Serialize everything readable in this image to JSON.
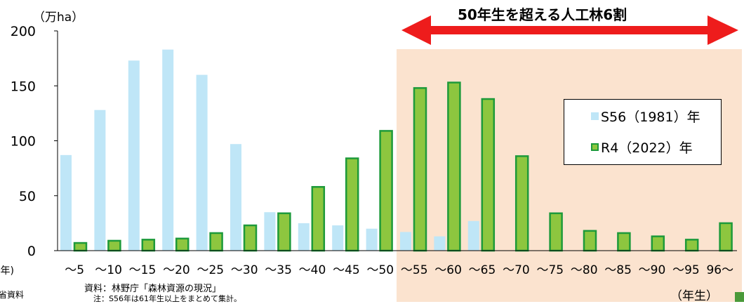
{
  "chart_data": {
    "type": "bar",
    "title": "50年生を超える人工林6割",
    "ylabel": "（万ha）",
    "xlabel": "（年生）",
    "ylim": [
      0,
      200
    ],
    "yticks": [
      0,
      50,
      100,
      150,
      200
    ],
    "grid": false,
    "legend_position": "right",
    "categories": [
      "～5",
      "～10",
      "～15",
      "～20",
      "～25",
      "～30",
      "～35",
      "～40",
      "～45",
      "～50",
      "～55",
      "～60",
      "～65",
      "～70",
      "～75",
      "～80",
      "～85",
      "～90",
      "～95",
      "96～"
    ],
    "series": [
      {
        "name": "S56（1981）年",
        "color": "#bfe6f7",
        "values": [
          87,
          128,
          173,
          183,
          160,
          97,
          35,
          25,
          23,
          20,
          17,
          13,
          27,
          0,
          0,
          0,
          0,
          0,
          0,
          0
        ]
      },
      {
        "name": "R4（2022）年",
        "color": "#8dc63f",
        "values": [
          7,
          9,
          10,
          11,
          16,
          23,
          34,
          58,
          84,
          109,
          148,
          153,
          138,
          86,
          34,
          18,
          16,
          13,
          10,
          25
        ]
      }
    ],
    "highlight": {
      "from_category": "～55",
      "to_category": "96～",
      "color": "#fbe3cf"
    },
    "annotation_arrow_color": "#ee1c1c",
    "left_cut_labels": {
      "axis_suffix": "(年)",
      "source_suffix": "省資料"
    }
  },
  "notes": {
    "source": "資料：林野庁「森林資源の現況」",
    "note": "注：S56年は61年生以上をまとめて集計。"
  }
}
